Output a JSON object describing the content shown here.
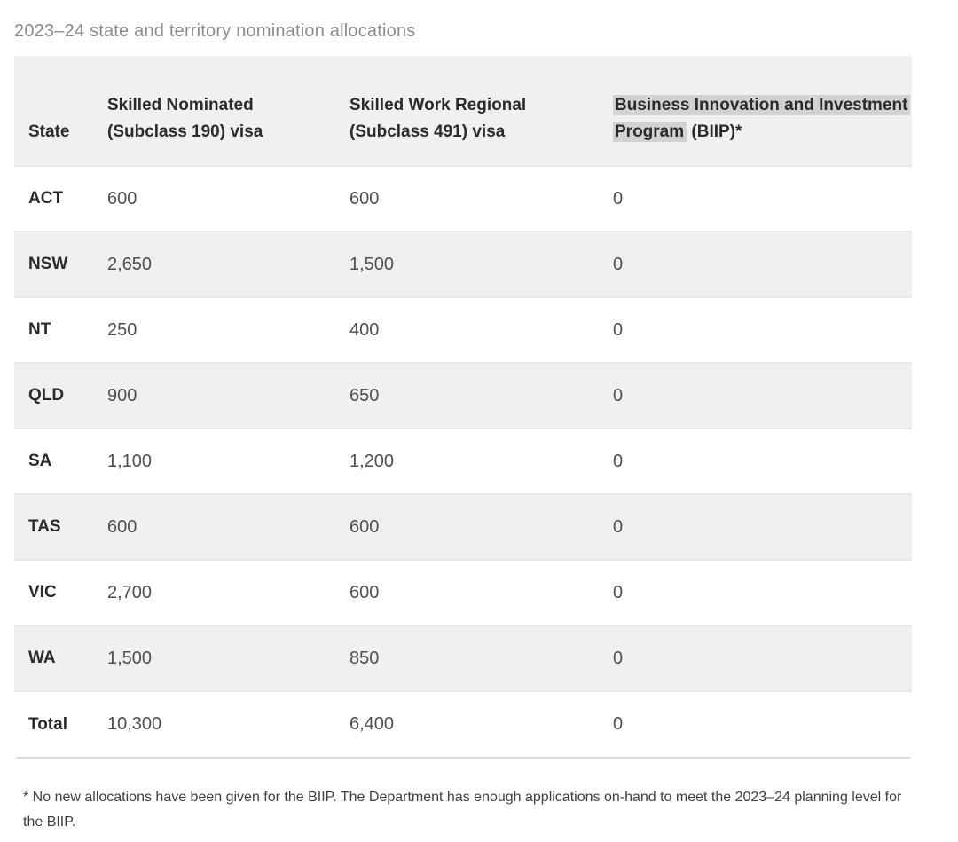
{
  "page": {
    "title": "2023–24 state and territory nomination allocations"
  },
  "table": {
    "columns": [
      {
        "label": "State"
      },
      {
        "label": "Skilled Nominated (Subclass 190) visa"
      },
      {
        "label": "Skilled Work Regional (Subclass 491) visa"
      },
      {
        "label_highlighted": "Business Innovation and Investment Program",
        "label_rest": " (BIIP)*"
      }
    ],
    "rows": [
      {
        "state": "ACT",
        "skilled_nominated_190": "600",
        "skilled_work_regional_491": "600",
        "biip": "0"
      },
      {
        "state": "NSW",
        "skilled_nominated_190": "2,650",
        "skilled_work_regional_491": "1,500",
        "biip": "0"
      },
      {
        "state": "NT",
        "skilled_nominated_190": "250",
        "skilled_work_regional_491": "400",
        "biip": "0"
      },
      {
        "state": "QLD",
        "skilled_nominated_190": "900",
        "skilled_work_regional_491": "650",
        "biip": "0"
      },
      {
        "state": "SA",
        "skilled_nominated_190": "1,100",
        "skilled_work_regional_491": "1,200",
        "biip": "0"
      },
      {
        "state": "TAS",
        "skilled_nominated_190": "600",
        "skilled_work_regional_491": "600",
        "biip": "0"
      },
      {
        "state": "VIC",
        "skilled_nominated_190": "2,700",
        "skilled_work_regional_491": "600",
        "biip": "0"
      },
      {
        "state": "WA",
        "skilled_nominated_190": "1,500",
        "skilled_work_regional_491": "850",
        "biip": "0"
      },
      {
        "state": "Total",
        "skilled_nominated_190": "10,300",
        "skilled_work_regional_491": "6,400",
        "biip": "0"
      }
    ]
  },
  "footnote": "* No new allocations have been given for the BIIP. The Department has enough applications on-hand to meet the 2023–24 planning level for the BIIP.",
  "colors": {
    "title_text": "#8b8b8b",
    "header_background": "#f0f0f0",
    "zebra_row_background": "#f0f0f0",
    "selection_highlight": "#d2d2d2",
    "header_text": "#2b2b2b",
    "value_text": "#4f4f4f"
  }
}
